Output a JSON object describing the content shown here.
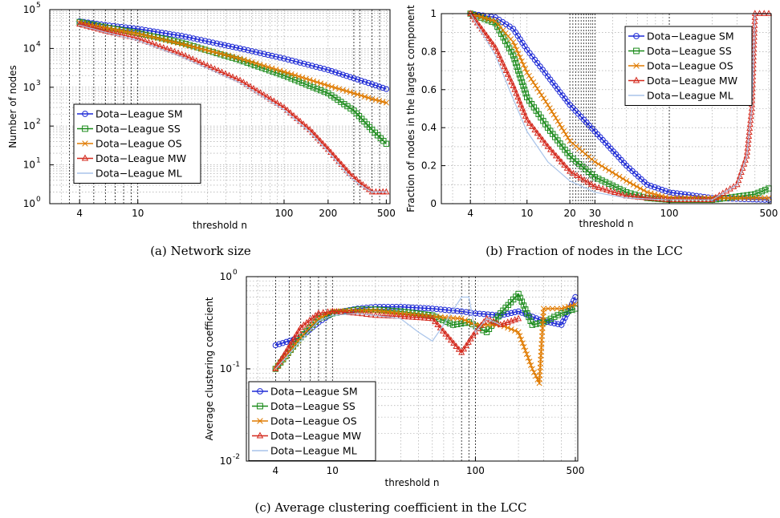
{
  "captions": [
    "(a) Network size",
    "(b) Fraction of nodes in the LCC",
    "(c) Average clustering coefficient in the LCC"
  ],
  "series_styles": [
    {
      "name": "Dota−League SM",
      "color": "#1f2bd6",
      "marker": "circle"
    },
    {
      "name": "Dota−League SS",
      "color": "#1a8a1a",
      "marker": "square"
    },
    {
      "name": "Dota−League OS",
      "color": "#e07b00",
      "marker": "x"
    },
    {
      "name": "Dota−League MW",
      "color": "#d42a1e",
      "marker": "triangle"
    },
    {
      "name": "Dota−League ML",
      "color": "#a9c4ea",
      "marker": "none"
    }
  ],
  "chart_data": [
    {
      "type": "line",
      "title": "",
      "xlabel": "threshold n",
      "ylabel": "Number of nodes",
      "xscale": "log",
      "yscale": "log",
      "xlim": [
        2.5,
        530
      ],
      "ylim": [
        1,
        100000
      ],
      "xticks": [
        "4",
        "10",
        "100",
        "200",
        "500"
      ],
      "xtick_values": [
        4,
        10,
        100,
        200,
        500
      ],
      "yticks": [
        "10^0",
        "10^1",
        "10^2",
        "10^3",
        "10^4",
        "10^5"
      ],
      "ytick_values": [
        1,
        10,
        100,
        1000,
        10000,
        100000
      ],
      "grid": true,
      "legend": "lower-left",
      "series": [
        {
          "name": "Dota−League SM",
          "x": [
            4,
            6,
            10,
            20,
            50,
            100,
            200,
            300,
            400,
            500
          ],
          "y": [
            50000,
            40000,
            32000,
            21000,
            10000,
            5500,
            2800,
            1700,
            1200,
            900
          ]
        },
        {
          "name": "Dota−League SS",
          "x": [
            4,
            6,
            10,
            20,
            50,
            100,
            200,
            300,
            400,
            500
          ],
          "y": [
            48000,
            35000,
            25000,
            14000,
            5000,
            2000,
            700,
            250,
            80,
            35
          ]
        },
        {
          "name": "Dota−League OS",
          "x": [
            4,
            6,
            10,
            20,
            50,
            100,
            200,
            300,
            400,
            500
          ],
          "y": [
            46000,
            34000,
            24000,
            13000,
            5500,
            2500,
            1100,
            700,
            500,
            400
          ]
        },
        {
          "name": "Dota−League MW",
          "x": [
            4,
            6,
            10,
            20,
            50,
            100,
            150,
            200,
            280,
            330,
            400,
            450,
            500
          ],
          "y": [
            42000,
            28000,
            18000,
            7000,
            1500,
            300,
            80,
            25,
            6,
            3.5,
            2,
            2,
            2
          ]
        },
        {
          "name": "Dota−League ML",
          "x": [
            4,
            6,
            10,
            20,
            50,
            100,
            150,
            200,
            280,
            330,
            400,
            450,
            500
          ],
          "y": [
            40000,
            26000,
            16000,
            6000,
            1300,
            260,
            70,
            22,
            5,
            3,
            2,
            2,
            2
          ]
        }
      ]
    },
    {
      "type": "line",
      "title": "",
      "xlabel": "threshold n",
      "ylabel": "Fraction of nodes in the largest component",
      "xscale": "log",
      "yscale": "linear",
      "xlim": [
        2.5,
        520
      ],
      "ylim": [
        0,
        1
      ],
      "xticks": [
        "4",
        "10",
        "20",
        "30",
        "100",
        "500"
      ],
      "xtick_values": [
        4,
        10,
        20,
        30,
        100,
        500
      ],
      "yticks": [
        "0",
        "0.2",
        "0.4",
        "0.6",
        "0.8",
        "1"
      ],
      "ytick_values": [
        0,
        0.2,
        0.4,
        0.6,
        0.8,
        1
      ],
      "grid": true,
      "legend": "top-right",
      "series": [
        {
          "name": "Dota−League SM",
          "x": [
            4,
            6,
            8,
            10,
            14,
            20,
            30,
            50,
            70,
            100,
            200,
            500
          ],
          "y": [
            1,
            0.98,
            0.92,
            0.81,
            0.67,
            0.52,
            0.38,
            0.2,
            0.1,
            0.06,
            0.03,
            0.02
          ]
        },
        {
          "name": "Dota−League SS",
          "x": [
            4,
            6,
            8,
            10,
            14,
            20,
            30,
            50,
            70,
            100,
            200,
            400,
            500
          ],
          "y": [
            1,
            0.95,
            0.78,
            0.56,
            0.4,
            0.25,
            0.14,
            0.06,
            0.03,
            0.02,
            0.02,
            0.05,
            0.08
          ]
        },
        {
          "name": "Dota−League OS",
          "x": [
            4,
            6,
            8,
            10,
            14,
            20,
            30,
            50,
            70,
            100,
            200,
            500
          ],
          "y": [
            1,
            0.96,
            0.85,
            0.69,
            0.52,
            0.33,
            0.22,
            0.12,
            0.06,
            0.03,
            0.03,
            0.03
          ]
        },
        {
          "name": "Dota−League MW",
          "x": [
            4,
            6,
            8,
            10,
            14,
            20,
            30,
            50,
            100,
            200,
            300,
            350,
            380,
            400,
            500
          ],
          "y": [
            1,
            0.82,
            0.62,
            0.44,
            0.3,
            0.17,
            0.09,
            0.04,
            0.02,
            0.02,
            0.1,
            0.25,
            0.5,
            1,
            1
          ]
        },
        {
          "name": "Dota−League ML",
          "x": [
            4,
            6,
            8,
            10,
            14,
            20,
            30,
            50,
            100,
            200,
            300,
            350,
            380,
            400,
            500
          ],
          "y": [
            1,
            0.78,
            0.55,
            0.38,
            0.22,
            0.12,
            0.06,
            0.03,
            0.02,
            0.02,
            0.1,
            0.25,
            0.5,
            1,
            1
          ]
        }
      ]
    },
    {
      "type": "line",
      "title": "",
      "xlabel": "threshold n",
      "ylabel": "Average clustering coefficient",
      "xscale": "log",
      "yscale": "log",
      "xlim": [
        2.5,
        520
      ],
      "ylim": [
        0.01,
        1
      ],
      "xticks": [
        "4",
        "10",
        "100",
        "500"
      ],
      "xtick_values": [
        4,
        10,
        100,
        500
      ],
      "yticks": [
        "10^-2",
        "10^-1",
        "10^0"
      ],
      "ytick_values": [
        0.01,
        0.1,
        1
      ],
      "grid": true,
      "legend": "lower-left",
      "series": [
        {
          "name": "Dota−League SM",
          "x": [
            4,
            6,
            8,
            10,
            15,
            20,
            30,
            50,
            80,
            100,
            150,
            200,
            300,
            400,
            500
          ],
          "y": [
            0.18,
            0.22,
            0.32,
            0.4,
            0.45,
            0.47,
            0.47,
            0.45,
            0.42,
            0.4,
            0.38,
            0.42,
            0.33,
            0.3,
            0.6
          ]
        },
        {
          "name": "Dota−League SS",
          "x": [
            4,
            6,
            8,
            10,
            15,
            20,
            30,
            50,
            70,
            90,
            120,
            150,
            200,
            250,
            300,
            400,
            500
          ],
          "y": [
            0.1,
            0.22,
            0.35,
            0.4,
            0.44,
            0.44,
            0.42,
            0.38,
            0.3,
            0.32,
            0.25,
            0.4,
            0.65,
            0.3,
            0.32,
            0.4,
            0.45
          ]
        },
        {
          "name": "Dota−League OS",
          "x": [
            4,
            6,
            8,
            10,
            15,
            20,
            30,
            50,
            80,
            100,
            150,
            200,
            250,
            280,
            300,
            400,
            500
          ],
          "y": [
            0.1,
            0.22,
            0.35,
            0.42,
            0.43,
            0.43,
            0.4,
            0.37,
            0.35,
            0.3,
            0.3,
            0.25,
            0.1,
            0.07,
            0.45,
            0.45,
            0.5
          ]
        },
        {
          "name": "Dota−League MW",
          "x": [
            4,
            6,
            8,
            10,
            15,
            20,
            30,
            50,
            80,
            100,
            120,
            150,
            200
          ],
          "y": [
            0.1,
            0.28,
            0.4,
            0.42,
            0.4,
            0.38,
            0.37,
            0.35,
            0.15,
            0.25,
            0.35,
            0.3,
            0.35
          ]
        },
        {
          "name": "Dota−League ML",
          "x": [
            4,
            6,
            8,
            10,
            15,
            20,
            30,
            40,
            50,
            60,
            80,
            90,
            100,
            120,
            150
          ],
          "y": [
            0.1,
            0.2,
            0.33,
            0.38,
            0.4,
            0.38,
            0.35,
            0.25,
            0.2,
            0.3,
            0.6,
            0.6,
            0.25,
            0.35,
            0.3
          ]
        }
      ]
    }
  ]
}
